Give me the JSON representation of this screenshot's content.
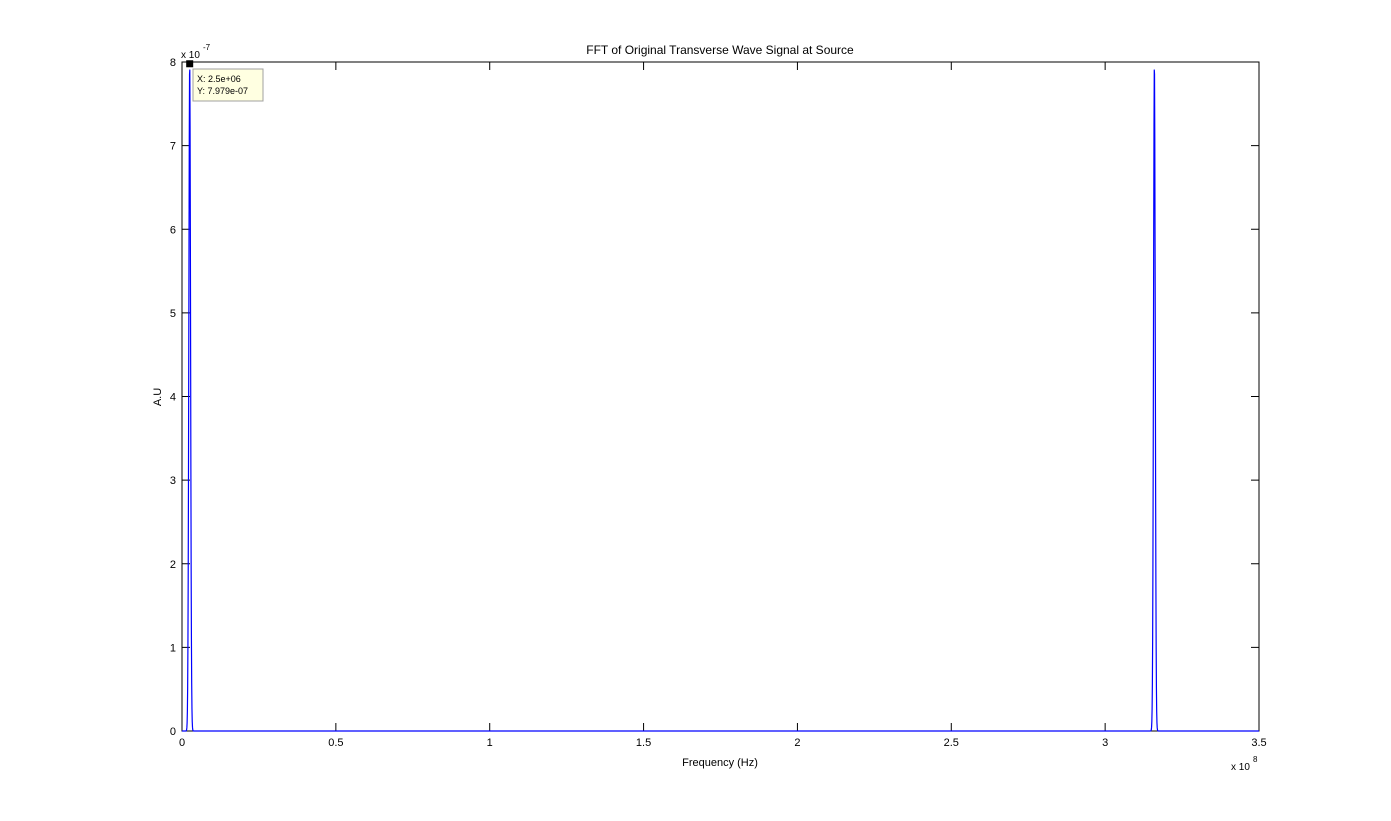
{
  "chart_data": {
    "type": "line",
    "title": "FFT of Original Transverse Wave Signal at Source",
    "xlabel": "Frequency (Hz)",
    "ylabel": "A.U",
    "xlim": [
      0,
      3.5
    ],
    "ylim": [
      0,
      8
    ],
    "x_scale_exponent_label": {
      "base": "x 10",
      "exp": "8"
    },
    "y_scale_exponent_label": {
      "base": "x 10",
      "exp": "-7"
    },
    "x_ticks": [
      0,
      0.5,
      1,
      1.5,
      2,
      2.5,
      3,
      3.5
    ],
    "x_tick_labels": [
      "0",
      "0.5",
      "1",
      "1.5",
      "2",
      "2.5",
      "3",
      "3.5"
    ],
    "y_ticks": [
      0,
      1,
      2,
      3,
      4,
      5,
      6,
      7,
      8
    ],
    "y_tick_labels": [
      "0",
      "1",
      "2",
      "3",
      "4",
      "5",
      "6",
      "7",
      "8"
    ],
    "grid": false,
    "series": [
      {
        "color": "#0000ff",
        "peaks": [
          {
            "center": 0.025,
            "amplitude": 7.979,
            "halfwidth": 0.004
          },
          {
            "center": 3.16,
            "amplitude": 7.979,
            "halfwidth": 0.004
          }
        ]
      }
    ],
    "datatip": {
      "x": 0.025,
      "y": 7.979,
      "x_label": "X: 2.5e+06",
      "y_label": "Y: 7.979e-07"
    }
  }
}
